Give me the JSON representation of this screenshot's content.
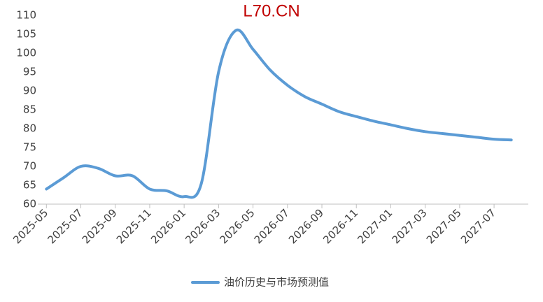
{
  "chart_data": {
    "type": "line",
    "title": "L70.CN",
    "categories": [
      "2025-05",
      null,
      "2025-07",
      null,
      "2025-09",
      null,
      "2025-11",
      null,
      "2026-01",
      null,
      "2026-03",
      null,
      "2026-05",
      null,
      "2026-07",
      null,
      "2026-09",
      null,
      "2026-11",
      null,
      "2027-01",
      null,
      "2027-03",
      null,
      "2027-05",
      null,
      "2027-07",
      null
    ],
    "series": [
      {
        "name": "油价历史与市场预测值",
        "color": "#5b9bd5",
        "values": [
          64,
          67,
          70,
          69.5,
          67.5,
          67.5,
          64,
          63.5,
          62,
          65.5,
          95,
          106,
          101,
          95.5,
          91.5,
          88.5,
          86.5,
          84.5,
          83.2,
          82,
          81,
          80,
          79.2,
          78.7,
          78.2,
          77.7,
          77.2,
          77
        ]
      }
    ],
    "ylim": [
      60,
      110
    ],
    "yticks": [
      60,
      65,
      70,
      75,
      80,
      85,
      90,
      95,
      100,
      105,
      110
    ],
    "legend": "bottom"
  }
}
